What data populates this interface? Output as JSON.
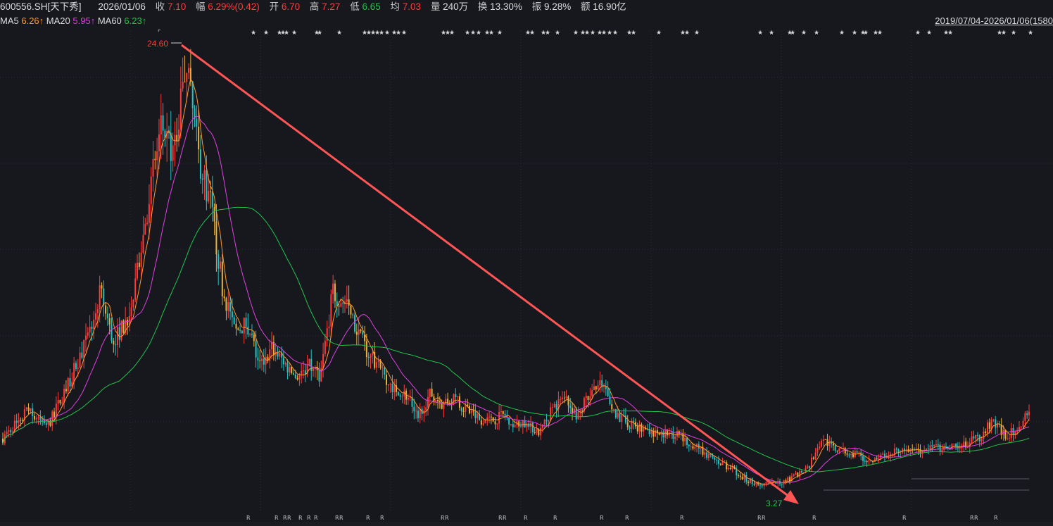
{
  "quote": {
    "symbol": "600556.SH[天下秀]",
    "date": "2026/01/06",
    "close_label": "收",
    "close": "7.10",
    "change_label": "幅",
    "change": "6.29%(0.42)",
    "open_label": "开",
    "open": "6.70",
    "high_label": "高",
    "high": "7.27",
    "low_label": "低",
    "low": "6.65",
    "avg_label": "均",
    "avg": "7.03",
    "volume_label": "量",
    "volume": "240万",
    "turnover_label": "换",
    "turnover": "13.30%",
    "amplitude_label": "振",
    "amplitude": "9.28%",
    "amount_label": "额",
    "amount": "16.90亿"
  },
  "ma": {
    "ma5_label": "MA5",
    "ma5_value": "6.26↑",
    "ma20_label": "MA20",
    "ma20_value": "5.95↑",
    "ma60_label": "MA60",
    "ma60_value": "6.23↑"
  },
  "range_text": "2019/07/04-2026/01/06(1580",
  "colors": {
    "background": "#16181e",
    "up": "#ff3b3b",
    "down": "#22c3c3",
    "ma5": "#ff9a2e",
    "ma20": "#e040e0",
    "ma60": "#22c34a",
    "trend_arrow": "#ff5555",
    "grid": "#2a2d35"
  },
  "chart_data": {
    "type": "candlestick",
    "date_range": [
      "2019/07/04",
      "2026/01/06"
    ],
    "y_range": [
      2.2,
      26.0
    ],
    "max_marker": "24.60",
    "min_marker": "3.27",
    "price_path": [
      [
        0,
        5.6
      ],
      [
        8,
        7.0
      ],
      [
        15,
        6.3
      ],
      [
        22,
        8.6
      ],
      [
        28,
        10.8
      ],
      [
        32,
        13.0
      ],
      [
        36,
        10.5
      ],
      [
        42,
        12.0
      ],
      [
        48,
        18.0
      ],
      [
        52,
        21.5
      ],
      [
        56,
        20.0
      ],
      [
        60,
        24.6
      ],
      [
        64,
        20.0
      ],
      [
        68,
        17.5
      ],
      [
        72,
        13.2
      ],
      [
        76,
        11.0
      ],
      [
        80,
        11.5
      ],
      [
        84,
        9.3
      ],
      [
        88,
        10.2
      ],
      [
        92,
        9.5
      ],
      [
        96,
        8.7
      ],
      [
        100,
        9.3
      ],
      [
        104,
        8.8
      ],
      [
        108,
        13.0
      ],
      [
        112,
        12.5
      ],
      [
        116,
        11.0
      ],
      [
        120,
        9.8
      ],
      [
        124,
        9.0
      ],
      [
        128,
        8.2
      ],
      [
        132,
        7.8
      ],
      [
        136,
        6.8
      ],
      [
        140,
        7.9
      ],
      [
        144,
        7.3
      ],
      [
        148,
        7.6
      ],
      [
        152,
        7.0
      ],
      [
        156,
        6.6
      ],
      [
        160,
        6.5
      ],
      [
        164,
        6.8
      ],
      [
        168,
        6.3
      ],
      [
        172,
        6.3
      ],
      [
        176,
        5.9
      ],
      [
        180,
        7.2
      ],
      [
        184,
        7.6
      ],
      [
        188,
        6.8
      ],
      [
        192,
        7.8
      ],
      [
        196,
        8.3
      ],
      [
        200,
        7.0
      ],
      [
        204,
        6.4
      ],
      [
        208,
        6.2
      ],
      [
        212,
        6.0
      ],
      [
        216,
        5.8
      ],
      [
        220,
        5.8
      ],
      [
        224,
        5.5
      ],
      [
        228,
        5.1
      ],
      [
        232,
        4.6
      ],
      [
        236,
        4.3
      ],
      [
        240,
        3.9
      ],
      [
        244,
        3.5
      ],
      [
        248,
        3.3
      ],
      [
        252,
        3.3
      ],
      [
        256,
        3.4
      ],
      [
        260,
        3.8
      ],
      [
        264,
        4.2
      ],
      [
        268,
        5.6
      ],
      [
        272,
        5.1
      ],
      [
        276,
        4.9
      ],
      [
        280,
        4.8
      ],
      [
        284,
        4.4
      ],
      [
        288,
        4.7
      ],
      [
        292,
        4.9
      ],
      [
        296,
        5.0
      ],
      [
        300,
        5.0
      ],
      [
        304,
        5.1
      ],
      [
        308,
        5.1
      ],
      [
        312,
        5.2
      ],
      [
        316,
        5.4
      ],
      [
        320,
        5.7
      ],
      [
        324,
        6.5
      ],
      [
        328,
        5.8
      ],
      [
        332,
        6.0
      ],
      [
        336,
        7.1
      ]
    ]
  }
}
